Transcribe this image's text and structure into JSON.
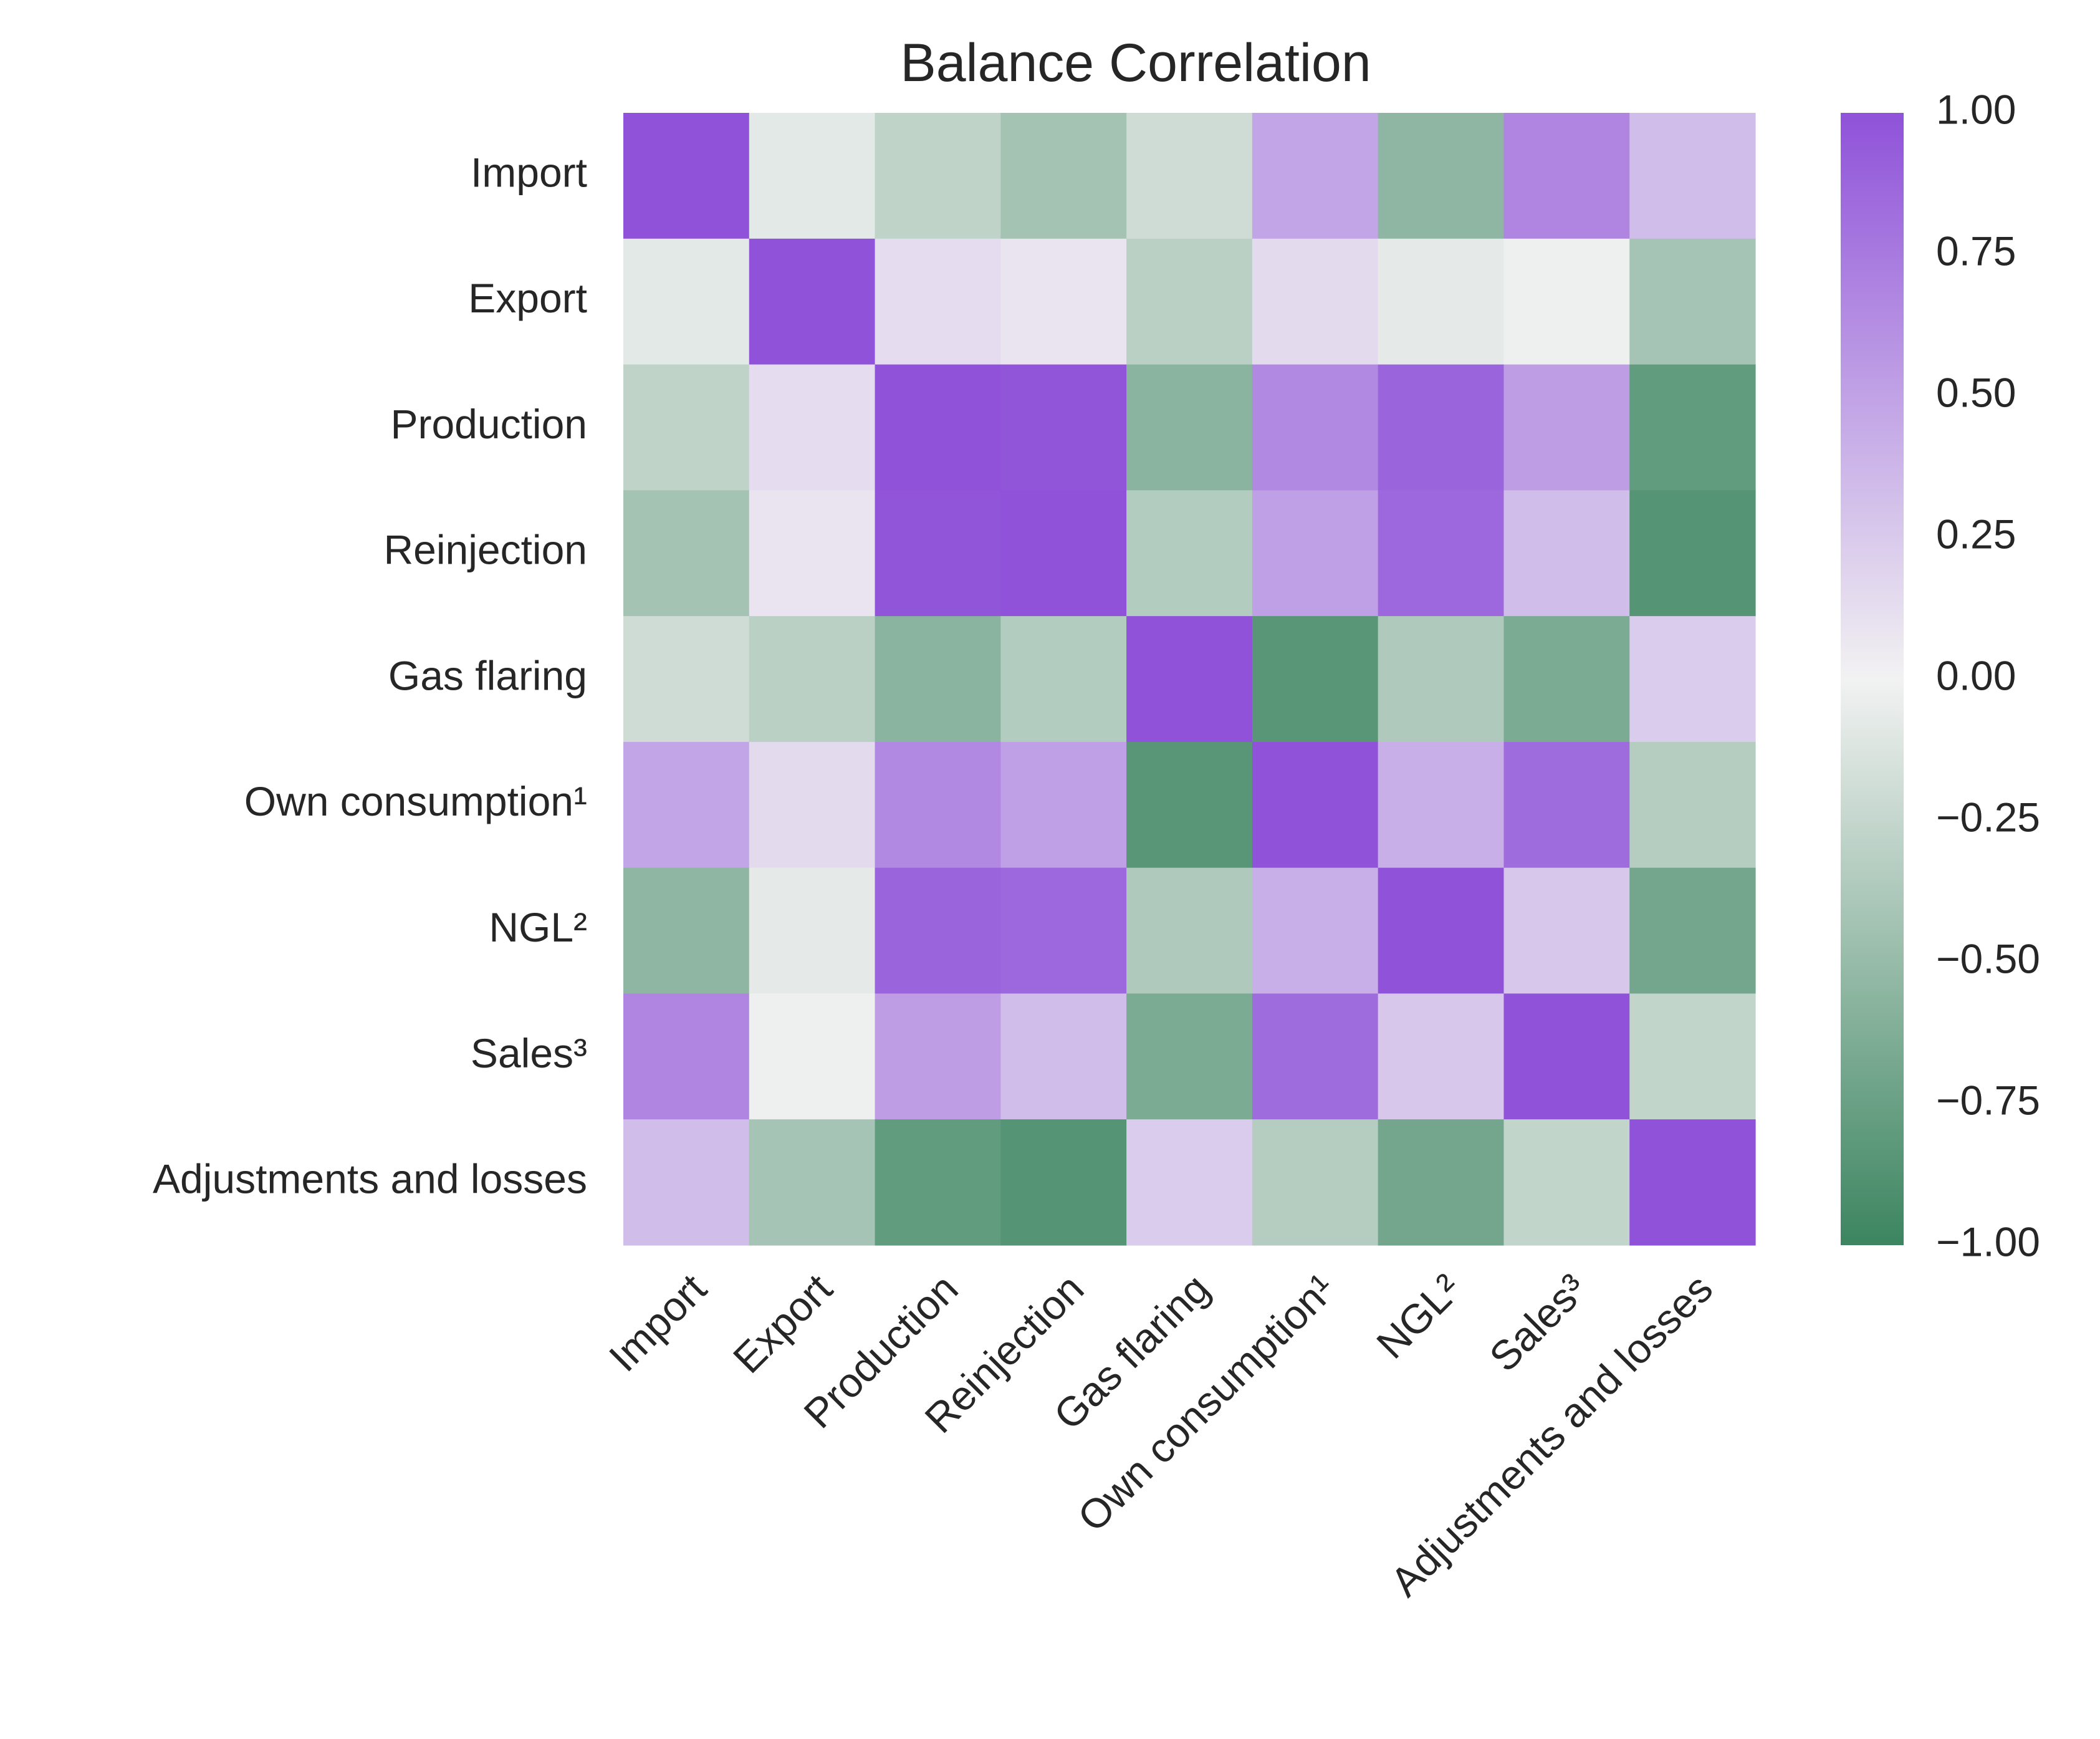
{
  "chart_data": {
    "type": "heatmap",
    "title": "Balance Correlation",
    "xlabel": "",
    "ylabel": "",
    "labels": [
      "Import",
      "Export",
      "Production",
      "Reinjection",
      "Gas flaring",
      "Own consumption¹",
      "NGL²",
      "Sales³",
      "Adjustments and losses"
    ],
    "matrix": [
      [
        1.0,
        -0.08,
        -0.28,
        -0.43,
        -0.2,
        0.48,
        -0.55,
        0.68,
        0.33
      ],
      [
        -0.08,
        1.0,
        0.13,
        0.09,
        -0.31,
        0.15,
        -0.07,
        -0.02,
        -0.42
      ],
      [
        -0.28,
        0.13,
        1.0,
        0.98,
        -0.57,
        0.66,
        0.89,
        0.53,
        -0.79
      ],
      [
        -0.43,
        0.09,
        0.98,
        1.0,
        -0.35,
        0.52,
        0.86,
        0.33,
        -0.86
      ],
      [
        -0.2,
        -0.31,
        -0.57,
        -0.35,
        1.0,
        -0.84,
        -0.37,
        -0.65,
        0.24
      ],
      [
        0.48,
        0.15,
        0.66,
        0.52,
        -0.84,
        1.0,
        0.42,
        0.84,
        -0.34
      ],
      [
        -0.55,
        -0.07,
        0.89,
        0.86,
        -0.37,
        0.42,
        1.0,
        0.27,
        -0.7
      ],
      [
        0.68,
        -0.02,
        0.53,
        0.33,
        -0.65,
        0.84,
        0.27,
        1.0,
        -0.27
      ],
      [
        0.33,
        -0.42,
        -0.79,
        -0.86,
        0.24,
        -0.34,
        -0.7,
        -0.27,
        1.0
      ]
    ],
    "vmin": -1.0,
    "vmax": 1.0,
    "colorbar": {
      "ticks": [
        1.0,
        0.75,
        0.5,
        0.25,
        0.0,
        -0.25,
        -0.5,
        -0.75,
        -1.0
      ],
      "tick_labels": [
        "1.00",
        "0.75",
        "0.50",
        "0.25",
        "0.00",
        "−0.25",
        "−0.50",
        "−0.75",
        "−1.00"
      ]
    },
    "colors": {
      "negative": "#3c8560",
      "center": "#f2f2f2",
      "positive": "#8f52d9"
    }
  }
}
